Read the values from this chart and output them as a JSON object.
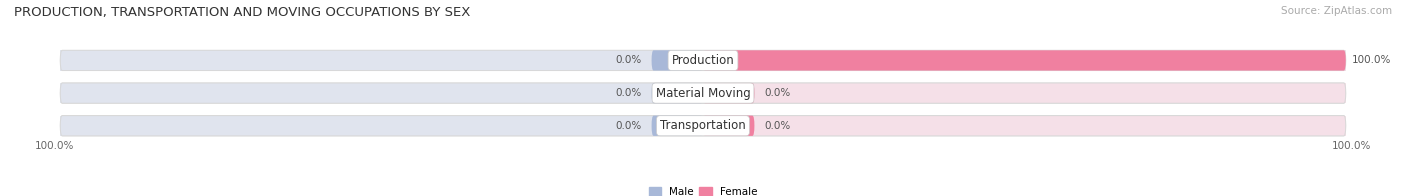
{
  "title": "PRODUCTION, TRANSPORTATION AND MOVING OCCUPATIONS BY SEX",
  "source": "Source: ZipAtlas.com",
  "categories": [
    "Transportation",
    "Material Moving",
    "Production"
  ],
  "male_values": [
    0.0,
    0.0,
    0.0
  ],
  "female_values": [
    0.0,
    0.0,
    100.0
  ],
  "male_color": "#a8b8d8",
  "female_color": "#f080a0",
  "bar_bg_color_male": "#e0e4ee",
  "bar_bg_color_female": "#f5e0e8",
  "bar_border_color": "#d8d8d8",
  "title_fontsize": 9.5,
  "source_fontsize": 7.5,
  "label_fontsize": 7.5,
  "category_fontsize": 8.5,
  "axis_label_left": "100.0%",
  "axis_label_right": "100.0%"
}
